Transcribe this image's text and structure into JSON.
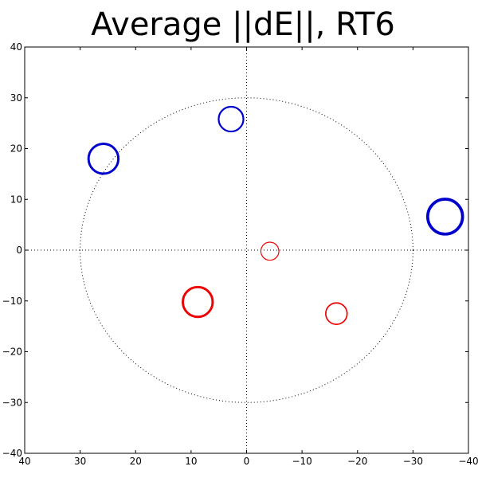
{
  "chart_data": {
    "type": "scatter",
    "title": "Average ||dE||, RT6",
    "xlabel": "",
    "ylabel": "",
    "xlim": [
      40,
      -40
    ],
    "ylim": [
      -40,
      40
    ],
    "x_ticks": [
      40,
      30,
      20,
      10,
      0,
      -10,
      -20,
      -30,
      -40
    ],
    "y_ticks": [
      40,
      30,
      20,
      10,
      0,
      -10,
      -20,
      -30,
      -40
    ],
    "x_tick_labels": [
      "40",
      "30",
      "20",
      "10",
      "0",
      "−10",
      "−20",
      "−30",
      "−40"
    ],
    "y_tick_labels": [
      "40",
      "30",
      "20",
      "10",
      "0",
      "−10",
      "−20",
      "−30",
      "−40"
    ],
    "grid": false,
    "reference_circle_radius": 30,
    "reference_lines": {
      "x": 0,
      "y": 0
    },
    "colors": {
      "blue": "#0000cc",
      "red": "#ee0000",
      "reference": "#000000"
    },
    "points": [
      {
        "x": -4.2,
        "y": -0.2,
        "color": "red",
        "size": 1.0
      },
      {
        "x": -16.2,
        "y": -12.5,
        "color": "red",
        "size": 1.4
      },
      {
        "x": 8.8,
        "y": -10.2,
        "color": "red",
        "size": 2.4
      },
      {
        "x": 2.8,
        "y": 25.8,
        "color": "blue",
        "size": 1.8
      },
      {
        "x": 25.8,
        "y": 18.0,
        "color": "blue",
        "size": 2.4
      },
      {
        "x": -35.8,
        "y": 6.6,
        "color": "blue",
        "size": 3.0
      }
    ]
  }
}
